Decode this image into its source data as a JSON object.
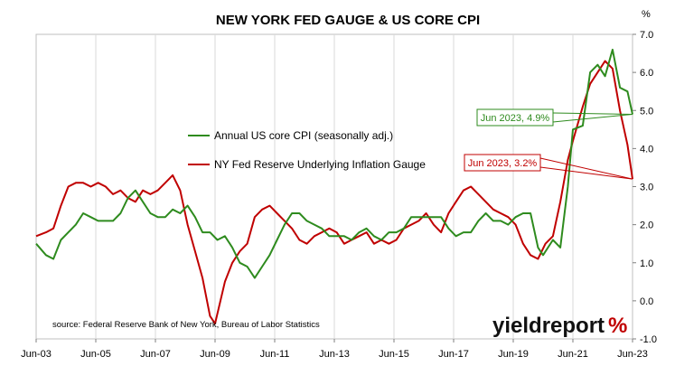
{
  "chart_data": {
    "type": "line",
    "title": "NEW YORK FED GAUGE & US CORE CPI",
    "ylabel": "%",
    "ylim": [
      -1.0,
      7.0
    ],
    "yticks": [
      "7.0",
      "6.0",
      "5.0",
      "4.0",
      "3.0",
      "2.0",
      "1.0",
      "0.0",
      "-1.0"
    ],
    "xlim": [
      2003.42,
      2023.42
    ],
    "xticks": [
      "Jun-03",
      "Jun-05",
      "Jun-07",
      "Jun-09",
      "Jun-11",
      "Jun-13",
      "Jun-15",
      "Jun-17",
      "Jun-19",
      "Jun-21",
      "Jun-23"
    ],
    "grid": "vertical",
    "legend_position": "center",
    "series": [
      {
        "name": "Annual US core CPI (seasonally adj.)",
        "color": "#2e8b1e",
        "points": [
          [
            2003.42,
            1.5
          ],
          [
            2003.75,
            1.2
          ],
          [
            2004.0,
            1.1
          ],
          [
            2004.25,
            1.6
          ],
          [
            2004.5,
            1.8
          ],
          [
            2004.75,
            2.0
          ],
          [
            2005.0,
            2.3
          ],
          [
            2005.25,
            2.2
          ],
          [
            2005.5,
            2.1
          ],
          [
            2005.75,
            2.1
          ],
          [
            2006.0,
            2.1
          ],
          [
            2006.25,
            2.3
          ],
          [
            2006.5,
            2.7
          ],
          [
            2006.75,
            2.9
          ],
          [
            2007.0,
            2.6
          ],
          [
            2007.25,
            2.3
          ],
          [
            2007.5,
            2.2
          ],
          [
            2007.75,
            2.2
          ],
          [
            2008.0,
            2.4
          ],
          [
            2008.25,
            2.3
          ],
          [
            2008.5,
            2.5
          ],
          [
            2008.75,
            2.2
          ],
          [
            2009.0,
            1.8
          ],
          [
            2009.25,
            1.8
          ],
          [
            2009.5,
            1.6
          ],
          [
            2009.75,
            1.7
          ],
          [
            2010.0,
            1.4
          ],
          [
            2010.25,
            1.0
          ],
          [
            2010.5,
            0.9
          ],
          [
            2010.75,
            0.6
          ],
          [
            2011.0,
            0.9
          ],
          [
            2011.25,
            1.2
          ],
          [
            2011.5,
            1.6
          ],
          [
            2011.75,
            2.0
          ],
          [
            2012.0,
            2.3
          ],
          [
            2012.25,
            2.3
          ],
          [
            2012.5,
            2.1
          ],
          [
            2012.75,
            2.0
          ],
          [
            2013.0,
            1.9
          ],
          [
            2013.25,
            1.7
          ],
          [
            2013.5,
            1.7
          ],
          [
            2013.75,
            1.7
          ],
          [
            2014.0,
            1.6
          ],
          [
            2014.25,
            1.8
          ],
          [
            2014.5,
            1.9
          ],
          [
            2014.75,
            1.7
          ],
          [
            2015.0,
            1.6
          ],
          [
            2015.25,
            1.8
          ],
          [
            2015.5,
            1.8
          ],
          [
            2015.75,
            1.9
          ],
          [
            2016.0,
            2.2
          ],
          [
            2016.25,
            2.2
          ],
          [
            2016.5,
            2.2
          ],
          [
            2016.75,
            2.2
          ],
          [
            2017.0,
            2.2
          ],
          [
            2017.25,
            1.9
          ],
          [
            2017.5,
            1.7
          ],
          [
            2017.75,
            1.8
          ],
          [
            2018.0,
            1.8
          ],
          [
            2018.25,
            2.1
          ],
          [
            2018.5,
            2.3
          ],
          [
            2018.75,
            2.1
          ],
          [
            2019.0,
            2.1
          ],
          [
            2019.25,
            2.0
          ],
          [
            2019.5,
            2.2
          ],
          [
            2019.75,
            2.3
          ],
          [
            2020.0,
            2.3
          ],
          [
            2020.25,
            1.4
          ],
          [
            2020.42,
            1.2
          ],
          [
            2020.75,
            1.6
          ],
          [
            2021.0,
            1.4
          ],
          [
            2021.25,
            3.0
          ],
          [
            2021.42,
            4.5
          ],
          [
            2021.75,
            4.6
          ],
          [
            2022.0,
            6.0
          ],
          [
            2022.25,
            6.2
          ],
          [
            2022.5,
            5.9
          ],
          [
            2022.75,
            6.6
          ],
          [
            2023.0,
            5.6
          ],
          [
            2023.25,
            5.5
          ],
          [
            2023.42,
            4.9
          ]
        ]
      },
      {
        "name": "NY Fed Reserve Underlying Inflation Gauge",
        "color": "#c00000",
        "points": [
          [
            2003.42,
            1.7
          ],
          [
            2003.75,
            1.8
          ],
          [
            2004.0,
            1.9
          ],
          [
            2004.25,
            2.5
          ],
          [
            2004.5,
            3.0
          ],
          [
            2004.75,
            3.1
          ],
          [
            2005.0,
            3.1
          ],
          [
            2005.25,
            3.0
          ],
          [
            2005.5,
            3.1
          ],
          [
            2005.75,
            3.0
          ],
          [
            2006.0,
            2.8
          ],
          [
            2006.25,
            2.9
          ],
          [
            2006.5,
            2.7
          ],
          [
            2006.75,
            2.6
          ],
          [
            2007.0,
            2.9
          ],
          [
            2007.25,
            2.8
          ],
          [
            2007.5,
            2.9
          ],
          [
            2007.75,
            3.1
          ],
          [
            2008.0,
            3.3
          ],
          [
            2008.25,
            2.9
          ],
          [
            2008.5,
            2.0
          ],
          [
            2008.75,
            1.3
          ],
          [
            2009.0,
            0.6
          ],
          [
            2009.25,
            -0.4
          ],
          [
            2009.42,
            -0.6
          ],
          [
            2009.75,
            0.5
          ],
          [
            2010.0,
            1.0
          ],
          [
            2010.25,
            1.3
          ],
          [
            2010.5,
            1.5
          ],
          [
            2010.75,
            2.2
          ],
          [
            2011.0,
            2.4
          ],
          [
            2011.25,
            2.5
          ],
          [
            2011.5,
            2.3
          ],
          [
            2011.75,
            2.1
          ],
          [
            2012.0,
            1.9
          ],
          [
            2012.25,
            1.6
          ],
          [
            2012.5,
            1.5
          ],
          [
            2012.75,
            1.7
          ],
          [
            2013.0,
            1.8
          ],
          [
            2013.25,
            1.9
          ],
          [
            2013.5,
            1.8
          ],
          [
            2013.75,
            1.5
          ],
          [
            2014.0,
            1.6
          ],
          [
            2014.25,
            1.7
          ],
          [
            2014.5,
            1.8
          ],
          [
            2014.75,
            1.5
          ],
          [
            2015.0,
            1.6
          ],
          [
            2015.25,
            1.5
          ],
          [
            2015.5,
            1.6
          ],
          [
            2015.75,
            1.9
          ],
          [
            2016.0,
            2.0
          ],
          [
            2016.25,
            2.1
          ],
          [
            2016.5,
            2.3
          ],
          [
            2016.75,
            2.0
          ],
          [
            2017.0,
            1.8
          ],
          [
            2017.25,
            2.3
          ],
          [
            2017.5,
            2.6
          ],
          [
            2017.75,
            2.9
          ],
          [
            2018.0,
            3.0
          ],
          [
            2018.25,
            2.8
          ],
          [
            2018.5,
            2.6
          ],
          [
            2018.75,
            2.4
          ],
          [
            2019.0,
            2.3
          ],
          [
            2019.25,
            2.2
          ],
          [
            2019.5,
            2.0
          ],
          [
            2019.75,
            1.5
          ],
          [
            2020.0,
            1.2
          ],
          [
            2020.25,
            1.1
          ],
          [
            2020.5,
            1.5
          ],
          [
            2020.75,
            1.7
          ],
          [
            2021.0,
            2.6
          ],
          [
            2021.25,
            3.7
          ],
          [
            2021.42,
            4.2
          ],
          [
            2021.75,
            5.1
          ],
          [
            2022.0,
            5.7
          ],
          [
            2022.25,
            6.0
          ],
          [
            2022.5,
            6.3
          ],
          [
            2022.75,
            6.1
          ],
          [
            2023.0,
            5.0
          ],
          [
            2023.25,
            4.1
          ],
          [
            2023.42,
            3.2
          ]
        ]
      }
    ],
    "annotations": [
      {
        "text": "Jun 2023, 4.9%",
        "x": 2023.42,
        "y": 4.9,
        "color": "#2e8b1e"
      },
      {
        "text": "Jun 2023, 3.2%",
        "x": 2023.42,
        "y": 3.2,
        "color": "#c00000"
      }
    ],
    "source": "source: Federal Reserve Bank of New York, Bureau of Labor Statistics",
    "brand": {
      "text": "yieldreport",
      "symbol": "%"
    }
  }
}
